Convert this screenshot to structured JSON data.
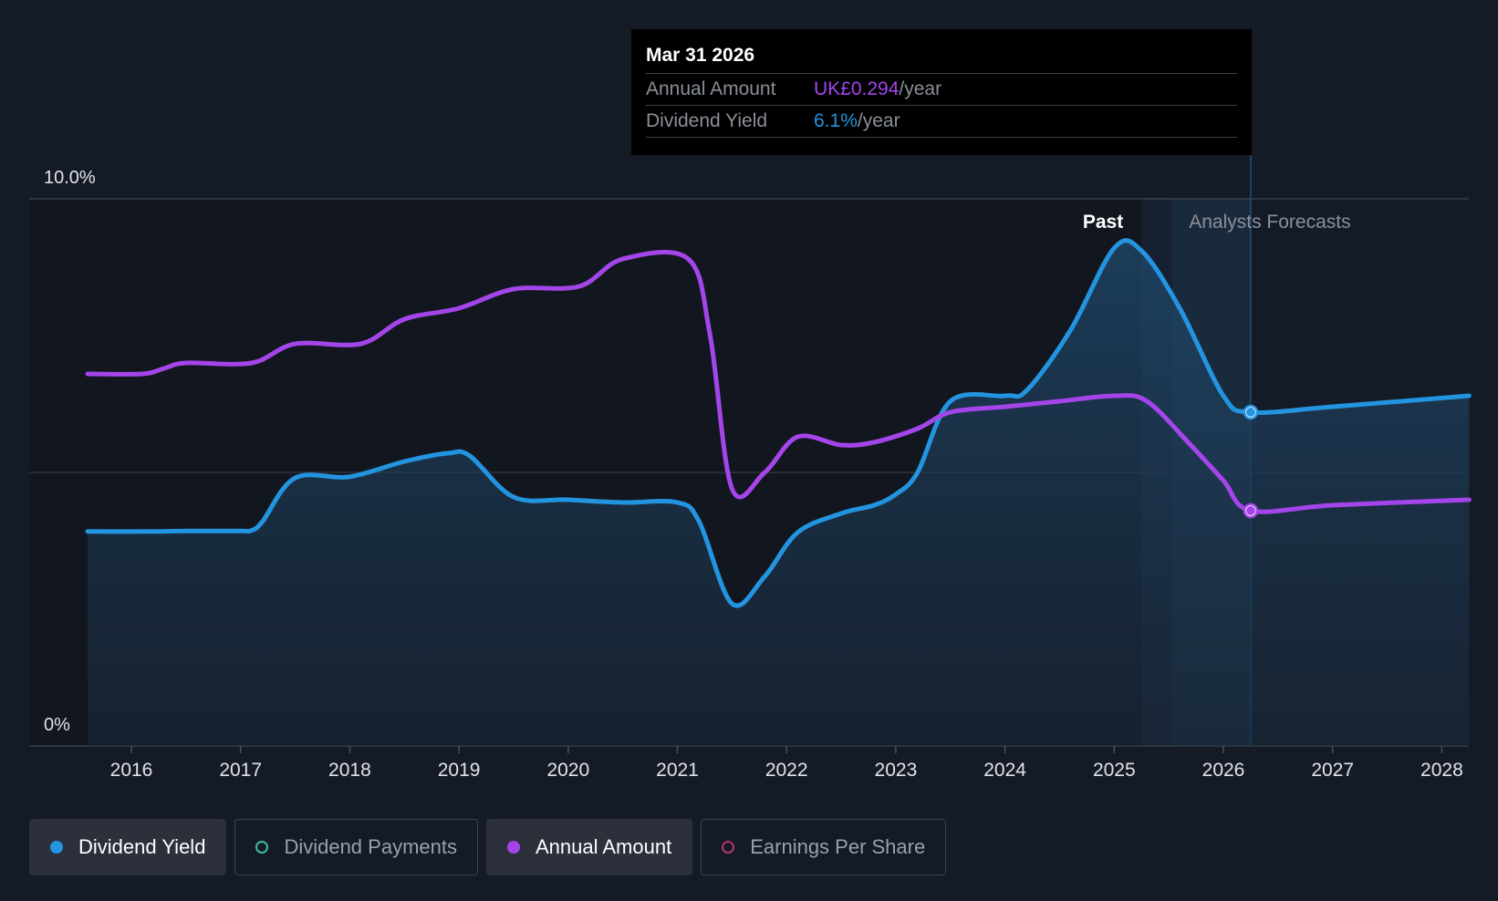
{
  "chart_data": {
    "type": "line",
    "y_axis": {
      "labels": [
        "10.0%",
        "0%"
      ],
      "ylim": [
        0,
        10
      ]
    },
    "x_axis": {
      "tick_labels": [
        "2016",
        "2017",
        "2018",
        "2019",
        "2020",
        "2021",
        "2022",
        "2023",
        "2024",
        "2025",
        "2026",
        "2027",
        "2028"
      ],
      "xlim": [
        2015.15,
        2028.25
      ]
    },
    "region_labels": {
      "past": "Past",
      "forecast": "Analysts Forecasts"
    },
    "past_end_x": 2025.25,
    "forecast_start_x": 2025.53,
    "hover_x": 2026.25,
    "series": [
      {
        "name": "Dividend Yield",
        "color": "#2394df",
        "values": [
          [
            2015.6,
            3.92
          ],
          [
            2016.2,
            3.92
          ],
          [
            2016.5,
            3.93
          ],
          [
            2017.0,
            3.93
          ],
          [
            2017.1,
            3.94
          ],
          [
            2017.2,
            4.1
          ],
          [
            2017.5,
            4.9
          ],
          [
            2018.0,
            4.92
          ],
          [
            2018.5,
            5.2
          ],
          [
            2018.9,
            5.35
          ],
          [
            2019.1,
            5.3
          ],
          [
            2019.5,
            4.55
          ],
          [
            2020.0,
            4.5
          ],
          [
            2020.5,
            4.45
          ],
          [
            2021.0,
            4.45
          ],
          [
            2021.2,
            4.1
          ],
          [
            2021.5,
            2.6
          ],
          [
            2021.8,
            3.1
          ],
          [
            2022.1,
            3.9
          ],
          [
            2022.5,
            4.25
          ],
          [
            2022.8,
            4.4
          ],
          [
            2023.0,
            4.6
          ],
          [
            2023.2,
            5.0
          ],
          [
            2023.5,
            6.3
          ],
          [
            2024.0,
            6.4
          ],
          [
            2024.2,
            6.5
          ],
          [
            2024.6,
            7.6
          ],
          [
            2025.0,
            9.1
          ],
          [
            2025.25,
            9.05
          ],
          [
            2025.6,
            8.0
          ],
          [
            2026.0,
            6.4
          ],
          [
            2026.25,
            6.1
          ],
          [
            2027.0,
            6.2
          ],
          [
            2028.25,
            6.4
          ]
        ]
      },
      {
        "name": "Annual Amount",
        "color": "#a445ea",
        "values": [
          [
            2015.6,
            6.8
          ],
          [
            2016.1,
            6.8
          ],
          [
            2016.3,
            6.9
          ],
          [
            2016.5,
            7.0
          ],
          [
            2017.1,
            7.0
          ],
          [
            2017.5,
            7.35
          ],
          [
            2018.1,
            7.35
          ],
          [
            2018.5,
            7.8
          ],
          [
            2019.0,
            8.0
          ],
          [
            2019.5,
            8.35
          ],
          [
            2020.1,
            8.4
          ],
          [
            2020.5,
            8.9
          ],
          [
            2021.1,
            8.9
          ],
          [
            2021.3,
            7.5
          ],
          [
            2021.5,
            4.7
          ],
          [
            2021.8,
            5.0
          ],
          [
            2022.1,
            5.65
          ],
          [
            2022.5,
            5.5
          ],
          [
            2022.8,
            5.55
          ],
          [
            2023.2,
            5.8
          ],
          [
            2023.5,
            6.1
          ],
          [
            2024.0,
            6.2
          ],
          [
            2024.5,
            6.3
          ],
          [
            2025.0,
            6.4
          ],
          [
            2025.3,
            6.3
          ],
          [
            2025.7,
            5.5
          ],
          [
            2026.0,
            4.85
          ],
          [
            2026.25,
            4.3
          ],
          [
            2027.0,
            4.4
          ],
          [
            2028.25,
            4.5
          ]
        ]
      }
    ],
    "hover_points": {
      "Dividend Yield": 6.1,
      "Annual Amount": 4.3
    }
  },
  "tooltip": {
    "date": "Mar 31 2026",
    "rows": [
      {
        "label": "Annual Amount",
        "value": "UK£0.294",
        "unit": "/year",
        "color": "#a445ea"
      },
      {
        "label": "Dividend Yield",
        "value": "6.1%",
        "unit": "/year",
        "color": "#2394df"
      }
    ]
  },
  "legend": [
    {
      "label": "Dividend Yield",
      "color": "#2394df",
      "active": true
    },
    {
      "label": "Dividend Payments",
      "color": "#3fb9a8",
      "active": false
    },
    {
      "label": "Annual Amount",
      "color": "#a445ea",
      "active": true
    },
    {
      "label": "Earnings Per Share",
      "color": "#b4356b",
      "active": false
    }
  ]
}
